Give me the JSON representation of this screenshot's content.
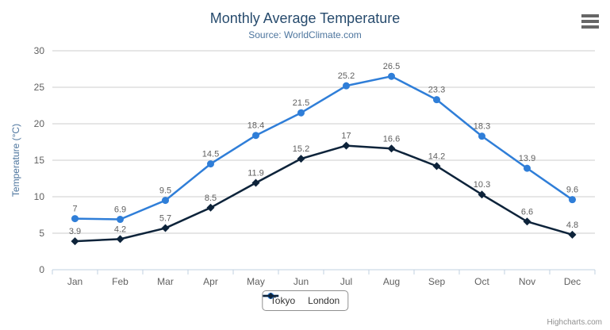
{
  "header": {
    "title": "Monthly Average Temperature",
    "subtitle": "Source: WorldClimate.com"
  },
  "credits": "Highcharts.com",
  "chart_data": {
    "type": "line",
    "title": "Monthly Average Temperature",
    "subtitle": "Source: WorldClimate.com",
    "categories": [
      "Jan",
      "Feb",
      "Mar",
      "Apr",
      "May",
      "Jun",
      "Jul",
      "Aug",
      "Sep",
      "Oct",
      "Nov",
      "Dec"
    ],
    "series": [
      {
        "name": "Tokyo",
        "color": "#2f7ed8",
        "marker": "circle",
        "values": [
          7,
          6.9,
          9.5,
          14.5,
          18.4,
          21.5,
          25.2,
          26.5,
          23.3,
          18.3,
          13.9,
          9.6
        ]
      },
      {
        "name": "London",
        "color": "#0d233a",
        "marker": "diamond",
        "values": [
          3.9,
          4.2,
          5.7,
          8.5,
          11.9,
          15.2,
          17,
          16.6,
          14.2,
          10.3,
          6.6,
          4.8
        ]
      }
    ],
    "xlabel": "",
    "ylabel": "Temperature (°C)",
    "ylim": [
      0,
      30
    ],
    "ytick_step": 5,
    "yticks": [
      0,
      5,
      10,
      15,
      20,
      25,
      30
    ],
    "grid": true,
    "data_labels": true,
    "legend_position": "bottom"
  },
  "colors": {
    "title": "#274b6d",
    "subtitle": "#4d759e",
    "axis_title": "#4d759e",
    "tick_label": "#606060",
    "data_label": "#606060",
    "grid_line": "#cccccc",
    "axis_line": "#c0d0e0",
    "legend_text": "#333333",
    "credits": "#909090",
    "menu_icon": "#666666",
    "background": "#ffffff"
  }
}
